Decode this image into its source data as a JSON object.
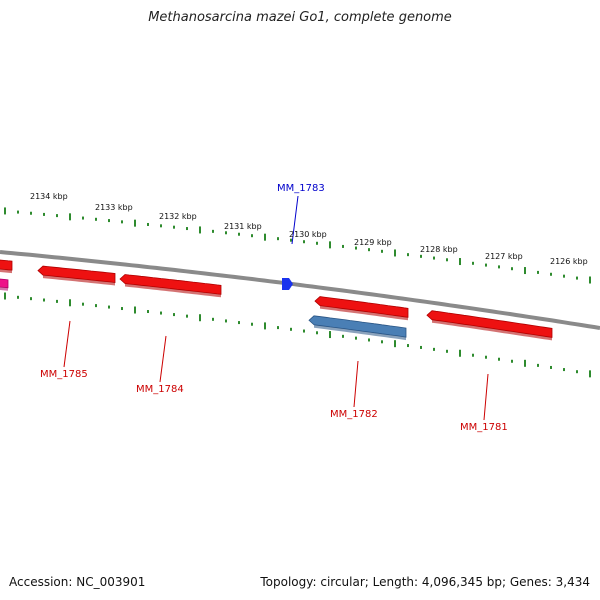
{
  "title": "Methanosarcina mazei Go1, complete genome",
  "footer": {
    "accession": "Accession: NC_003901",
    "summary": "Topology: circular; Length: 4,096,345 bp; Genes: 3,434"
  },
  "colors": {
    "backbone": "#8a8a8a",
    "ticks": "#2e8b2e",
    "gene_forward": "#ee1111",
    "gene_blue": "#4a7fb5",
    "gene_pink": "#ee1188",
    "marker": "#1a33ee",
    "label_red": "#cc0000",
    "label_blue": "#0000cc"
  },
  "kbp_ticks": [
    {
      "label": "2134 kbp"
    },
    {
      "label": "2133 kbp"
    },
    {
      "label": "2132 kbp"
    },
    {
      "label": "2131 kbp"
    },
    {
      "label": "2130 kbp"
    },
    {
      "label": "2129 kbp"
    },
    {
      "label": "2128 kbp"
    },
    {
      "label": "2127 kbp"
    },
    {
      "label": "2126 kbp"
    }
  ],
  "genes": [
    {
      "name": "MM_1785",
      "color": "red"
    },
    {
      "name": "MM_1784",
      "color": "red"
    },
    {
      "name": "MM_1783",
      "color": "blue"
    },
    {
      "name": "MM_1782",
      "color": "red"
    },
    {
      "name": "MM_1781",
      "color": "red"
    }
  ]
}
